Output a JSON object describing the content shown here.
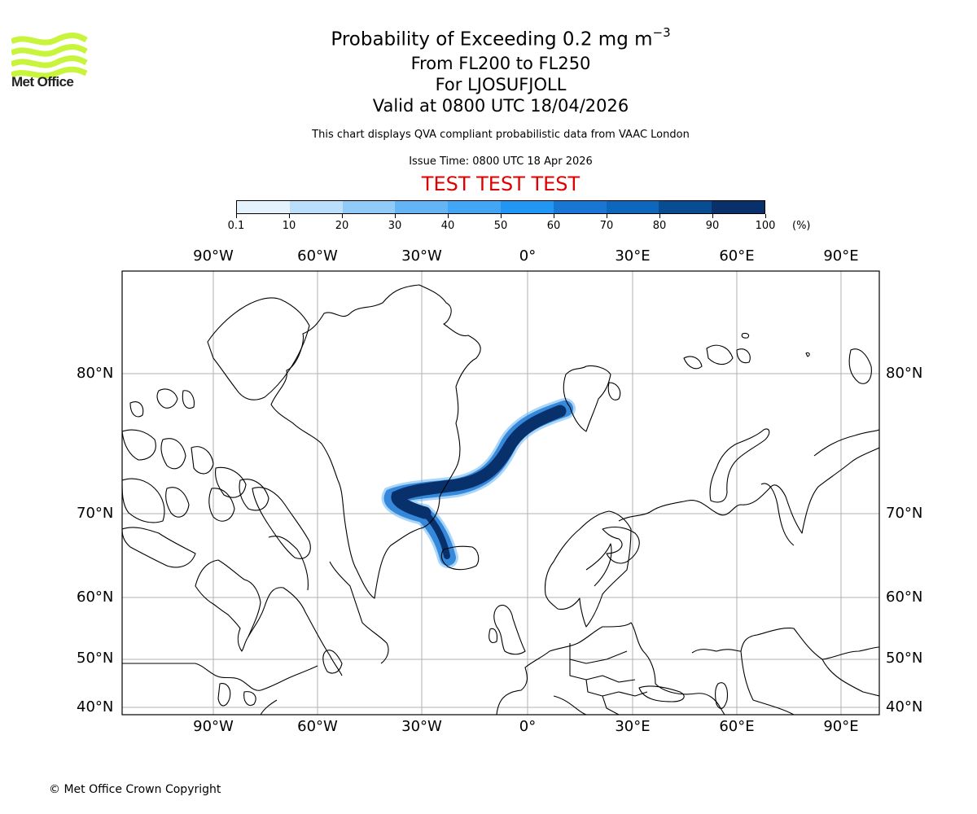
{
  "logo": {
    "text": "Met Office",
    "color": "#c8f53c"
  },
  "title": {
    "main": "Probability of Exceeding 0.2 mg m",
    "main_superscript": "−3",
    "flight_levels": "From FL200 to FL250",
    "volcano": "For LJOSUFJOLL",
    "valid": "Valid at 0800 UTC 18/04/2026"
  },
  "subtitle": "This chart displays QVA compliant probabilistic data from VAAC London",
  "issue_time": "Issue Time: 0800 UTC 18 Apr 2026",
  "test_banner": {
    "text": "TEST TEST TEST",
    "color": "#e00000"
  },
  "colorbar": {
    "unit": "(%)",
    "ticks": [
      "0.1",
      "10",
      "20",
      "30",
      "40",
      "50",
      "60",
      "70",
      "80",
      "90",
      "100"
    ],
    "colors": [
      "#e3f2fd",
      "#bbdefb",
      "#90caf9",
      "#64b5f6",
      "#42a5f5",
      "#2196f3",
      "#1976d2",
      "#0d67bd",
      "#084d91",
      "#08306b"
    ]
  },
  "map": {
    "top_lon_labels": [
      "90°W",
      "60°W",
      "30°W",
      "0°",
      "30°E",
      "60°E",
      "90°E"
    ],
    "bottom_lon_labels": [
      "90°W",
      "60°W",
      "30°W",
      "0°",
      "30°E",
      "60°E",
      "90°E"
    ],
    "left_lat_labels": [
      "80°N",
      "70°N",
      "60°N",
      "50°N",
      "40°N"
    ],
    "right_lat_labels": [
      "80°N",
      "70°N",
      "60°N",
      "50°N",
      "40°N"
    ],
    "gridline_color": "#b0b0b0",
    "plume_color": "#08306b",
    "plume_edge_color": "#2a7fd6"
  },
  "footer": {
    "copyright": "© Met Office Crown Copyright"
  }
}
